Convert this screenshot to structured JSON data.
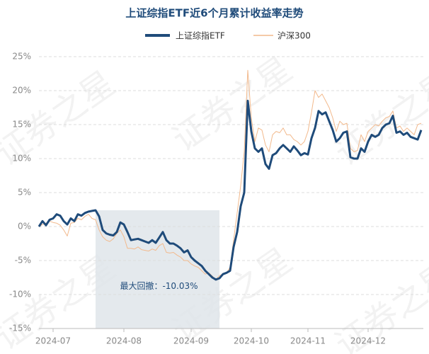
{
  "chart_data": {
    "type": "line",
    "title": "上证综指ETF近6个月累计收益率走势",
    "watermark": "证券之星",
    "categories": [
      null,
      null,
      null,
      null,
      "2024-07",
      null,
      null,
      null,
      null,
      null,
      null,
      null,
      null,
      null,
      null,
      null,
      null,
      null,
      null,
      null,
      null,
      null,
      null,
      null,
      "2024-08",
      null,
      null,
      null,
      null,
      null,
      null,
      null,
      null,
      null,
      null,
      null,
      null,
      null,
      null,
      null,
      null,
      null,
      null,
      "2024-09",
      null,
      null,
      null,
      null,
      null,
      null,
      null,
      null,
      null,
      null,
      null,
      null,
      null,
      null,
      null,
      null,
      "2024-10",
      null,
      null,
      null,
      null,
      null,
      null,
      null,
      null,
      null,
      null,
      null,
      null,
      null,
      null,
      null,
      "2024-11",
      null,
      null,
      null,
      null,
      null,
      null,
      null,
      null,
      null,
      null,
      null,
      null,
      null,
      null,
      null,
      null,
      "2024-12",
      null,
      null,
      null,
      null,
      null,
      null,
      null,
      null,
      null,
      null,
      null,
      null,
      null,
      null,
      null
    ],
    "series": [
      {
        "name": "上证综指ETF",
        "color": "#1f4b7a",
        "values": [
          0.0,
          0.8,
          0.2,
          1.0,
          1.2,
          1.8,
          1.6,
          0.8,
          0.3,
          1.2,
          0.8,
          1.8,
          1.6,
          2.0,
          2.2,
          2.3,
          2.4,
          1.5,
          -0.5,
          -1.0,
          -1.2,
          -1.3,
          -0.8,
          0.6,
          0.3,
          -0.8,
          -2.0,
          -1.9,
          -1.8,
          -2.0,
          -2.2,
          -2.4,
          -2.0,
          -2.4,
          -1.6,
          -0.8,
          -2.0,
          -2.5,
          -2.5,
          -2.8,
          -3.2,
          -3.8,
          -3.5,
          -4.5,
          -5.0,
          -5.4,
          -5.8,
          -6.5,
          -7.0,
          -7.5,
          -7.8,
          -7.6,
          -7.0,
          -6.8,
          -6.5,
          -3.0,
          -0.8,
          3.0,
          5.0,
          18.5,
          14.0,
          11.5,
          11.0,
          11.5,
          9.2,
          8.5,
          10.5,
          10.8,
          11.5,
          12.0,
          11.5,
          11.0,
          11.8,
          11.2,
          10.5,
          10.8,
          10.6,
          13.0,
          14.5,
          17.0,
          16.5,
          16.8,
          15.5,
          14.2,
          12.5,
          13.0,
          13.8,
          14.0,
          10.2,
          10.0,
          10.0,
          11.5,
          11.0,
          12.5,
          13.5,
          13.2,
          13.5,
          14.5,
          15.0,
          15.2,
          16.3,
          13.8,
          14.0,
          13.5,
          13.8,
          13.2,
          13.0,
          12.8,
          14.2
        ]
      },
      {
        "name": "沪深300",
        "color": "#f2b98c",
        "values": [
          0.0,
          0.3,
          0.5,
          0.8,
          0.6,
          0.5,
          0.2,
          -0.5,
          -1.4,
          0.5,
          0.6,
          1.2,
          1.0,
          1.5,
          1.8,
          1.2,
          1.0,
          -0.5,
          -1.5,
          -2.0,
          -2.2,
          -1.8,
          -1.0,
          -0.5,
          -1.5,
          -3.2,
          -3.2,
          -3.3,
          -3.0,
          -3.4,
          -3.5,
          -3.6,
          -3.3,
          -3.5,
          -2.8,
          -2.5,
          -3.8,
          -3.9,
          -3.8,
          -4.2,
          -4.5,
          -5.0,
          -5.0,
          -5.5,
          -5.8,
          -6.0,
          -6.5,
          -7.0,
          -6.8,
          -7.3,
          -7.8,
          -7.2,
          -7.0,
          -6.8,
          -6.0,
          -2.0,
          2.0,
          6.0,
          11.0,
          23.0,
          16.0,
          12.5,
          14.5,
          14.2,
          12.0,
          11.0,
          13.5,
          14.0,
          13.8,
          14.5,
          13.5,
          13.5,
          12.8,
          12.5,
          12.0,
          12.5,
          14.0,
          16.8,
          20.0,
          19.0,
          19.5,
          18.5,
          17.5,
          16.0,
          14.0,
          15.5,
          15.0,
          15.2,
          11.5,
          11.0,
          11.2,
          13.5,
          12.5,
          14.0,
          14.5,
          15.0,
          14.8,
          15.5,
          16.0,
          16.2,
          17.0,
          14.5,
          14.8,
          14.0,
          14.5,
          14.0,
          13.5,
          15.0,
          15.2
        ]
      }
    ],
    "highlight": {
      "from": 16,
      "to": 51,
      "label": "最大回撤：-10.03%"
    },
    "ylim": [
      -15,
      25
    ],
    "yticks": [
      {
        "value": -15,
        "label": "-15%"
      },
      {
        "value": -10,
        "label": "-10%"
      },
      {
        "value": -5,
        "label": "-5%"
      },
      {
        "value": 0,
        "label": "0%"
      },
      {
        "value": 5,
        "label": "5%"
      },
      {
        "value": 10,
        "label": "10%"
      },
      {
        "value": 15,
        "label": "15%"
      },
      {
        "value": 20,
        "label": "20%"
      },
      {
        "value": 25,
        "label": "25%"
      }
    ],
    "grid": true
  }
}
